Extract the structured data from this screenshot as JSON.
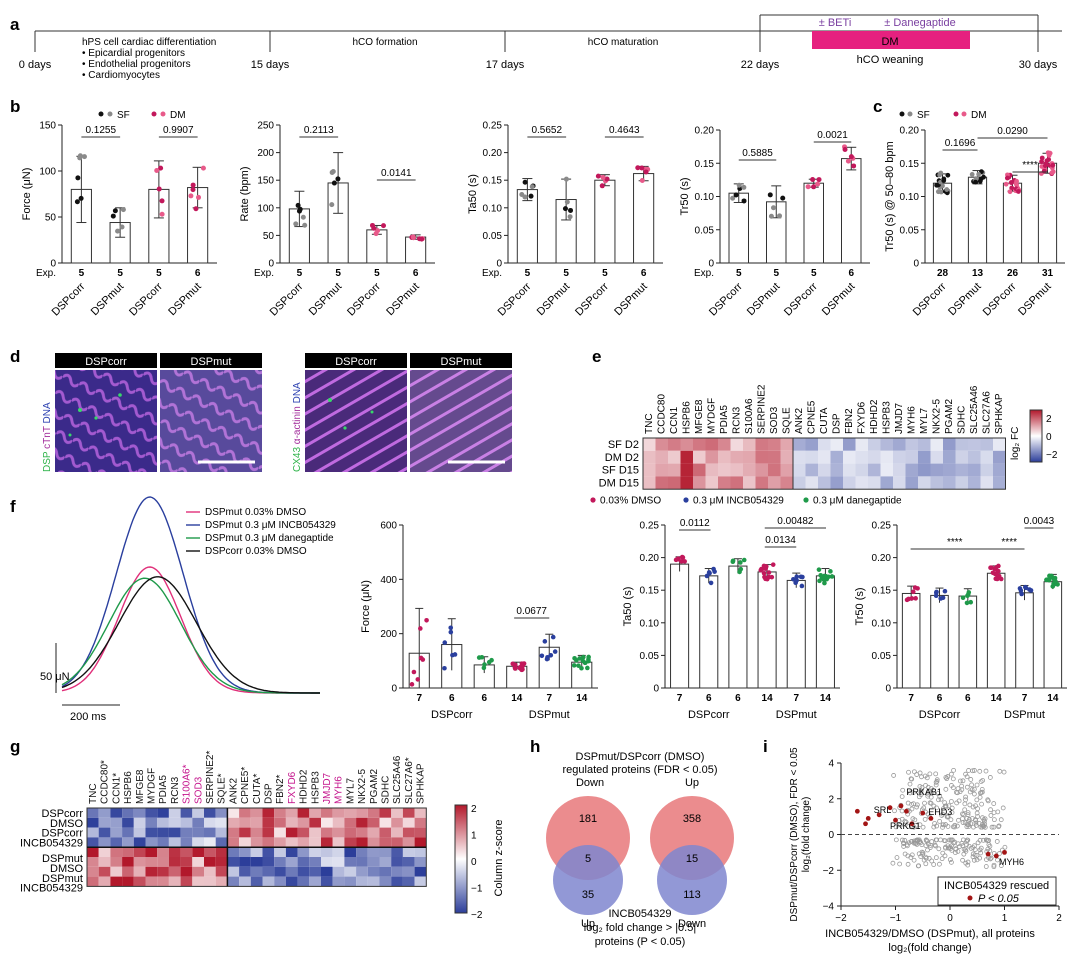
{
  "panel_labels": [
    "a",
    "b",
    "c",
    "d",
    "e",
    "f",
    "g",
    "h",
    "i"
  ],
  "a": {
    "timepoints": [
      "0 days",
      "15 days",
      "17 days",
      "22 days",
      "30 days"
    ],
    "phase_cardiac": "hPS cell cardiac differentiation",
    "bullets": [
      "• Epicardial progenitors",
      "• Endothelial progenitors",
      "• Cardiomyocytes"
    ],
    "phase_formation": "hCO formation",
    "phase_maturation": "hCO maturation",
    "beti": "± BETi",
    "danegaptide": "± Danegaptide",
    "dm": "DM",
    "weaning": "hCO weaning",
    "colors": {
      "dm_box": "#e6217f",
      "purple": "#7a3fa0"
    }
  },
  "b": {
    "legend": {
      "sf": "SF",
      "dm": "DM"
    },
    "exp_label": "Exp.",
    "groups": [
      "DSPcorr",
      "DSPmut",
      "DSPcorr",
      "DSPmut"
    ],
    "n": [
      "5",
      "5",
      "5",
      "6"
    ],
    "colors": {
      "sf1": "#111111",
      "sf2": "#8a8a8a",
      "dm1": "#c2185b",
      "dm2": "#e85a8a"
    }
  },
  "c": {
    "legend": {
      "sf": "SF",
      "dm": "DM"
    },
    "n": [
      "28",
      "13",
      "26",
      "31"
    ],
    "groups": [
      "DSPcorr",
      "DSPmut",
      "DSPcorr",
      "DSPmut"
    ]
  },
  "chart_data": [
    {
      "panel": "b",
      "type": "bar",
      "ylabel": "Force (μN)",
      "ylim": [
        0,
        150
      ],
      "yticks": [
        "0",
        "50",
        "100",
        "150"
      ],
      "categories": [
        "DSPcorr",
        "DSPmut",
        "DSPcorr",
        "DSPmut"
      ],
      "values": [
        80,
        44,
        80,
        82
      ],
      "errors": [
        36,
        16,
        31,
        22
      ],
      "pvalues": [
        {
          "text": "0.1255",
          "from": 0,
          "to": 1
        },
        {
          "text": "0.9907",
          "from": 2,
          "to": 3
        }
      ]
    },
    {
      "panel": "b",
      "type": "bar",
      "ylabel": "Rate (bpm)",
      "ylim": [
        0,
        250
      ],
      "yticks": [
        "0",
        "50",
        "100",
        "150",
        "200",
        "250"
      ],
      "categories": [
        "DSPcorr",
        "DSPmut",
        "DSPcorr",
        "DSPmut"
      ],
      "values": [
        98,
        145,
        60,
        47
      ],
      "errors": [
        32,
        55,
        8,
        4
      ],
      "pvalues": [
        {
          "text": "0.2113",
          "from": 0,
          "to": 1
        },
        {
          "text": "0.0141",
          "from": 2,
          "to": 3
        }
      ]
    },
    {
      "panel": "b",
      "type": "bar",
      "ylabel": "Ta50 (s)",
      "ylim": [
        0,
        0.25
      ],
      "yticks": [
        "0",
        "0.05",
        "0.10",
        "0.15",
        "0.20",
        "0.25"
      ],
      "categories": [
        "DSPcorr",
        "DSPmut",
        "DSPcorr",
        "DSPmut"
      ],
      "values": [
        0.133,
        0.115,
        0.15,
        0.162
      ],
      "errors": [
        0.02,
        0.037,
        0.01,
        0.013
      ],
      "pvalues": [
        {
          "text": "0.5652",
          "from": 0,
          "to": 1
        },
        {
          "text": "0.4643",
          "from": 2,
          "to": 3
        }
      ]
    },
    {
      "panel": "b",
      "type": "bar",
      "ylabel": "Tr50 (s)",
      "ylim": [
        0,
        0.2
      ],
      "yticks": [
        "0",
        "0.05",
        "0.10",
        "0.15",
        "0.20"
      ],
      "categories": [
        "DSPcorr",
        "DSPmut",
        "DSPcorr",
        "DSPmut"
      ],
      "values": [
        0.105,
        0.092,
        0.12,
        0.157
      ],
      "errors": [
        0.014,
        0.024,
        0.006,
        0.017
      ],
      "pvalues": [
        {
          "text": "0.5885",
          "from": 0,
          "to": 1
        },
        {
          "text": "0.0021",
          "from": 2,
          "to": 3
        }
      ]
    },
    {
      "panel": "c",
      "type": "bar",
      "ylabel": "Tr50 (s) @ 50–80 bpm",
      "ylim": [
        0,
        0.2
      ],
      "yticks": [
        "0",
        "0.05",
        "0.10",
        "0.15",
        "0.20"
      ],
      "categories": [
        "DSPcorr",
        "DSPmut",
        "DSPcorr",
        "DSPmut"
      ],
      "values": [
        0.12,
        0.129,
        0.12,
        0.15
      ],
      "errors": [
        0.014,
        0.01,
        0.012,
        0.015
      ],
      "pvalues": [
        {
          "text": "0.1696",
          "from": 0,
          "to": 1
        },
        {
          "text": "****",
          "from": 2,
          "to": 3
        },
        {
          "text": "0.0290",
          "from": 1,
          "to": 3
        }
      ]
    },
    {
      "panel": "f",
      "type": "line",
      "series": [
        {
          "name": "DSPmut 0.03% DMSO",
          "peak": 0.9
        },
        {
          "name": "DSPmut  0.3 μM INCB054329",
          "peak": 1.4
        },
        {
          "name": "DSPmut  0.3 μM danegaptide",
          "peak": 0.82
        },
        {
          "name": "DSPcorr 0.03% DMSO",
          "peak": 0.83
        }
      ],
      "colors": [
        "#e0307a",
        "#2a3f9e",
        "#1f9a4a",
        "#111111"
      ],
      "scalebars": [
        "50 μN",
        "200 ms"
      ]
    },
    {
      "panel": "f",
      "type": "bar",
      "ylabel": "Force (μN)",
      "ylim": [
        0,
        600
      ],
      "yticks": [
        "0",
        "200",
        "400",
        "600"
      ],
      "categories": [
        "DSPcorr",
        "DSPmut"
      ],
      "series": [
        {
          "name": "0.03% DMSO",
          "values": [
            128,
            80
          ],
          "errors": [
            165,
            15
          ]
        },
        {
          "name": "0.3 μM INCB054329",
          "values": [
            160,
            150
          ],
          "errors": [
            95,
            48
          ]
        },
        {
          "name": "0.3 μM danegaptide",
          "values": [
            85,
            95
          ],
          "errors": [
            30,
            25
          ]
        }
      ],
      "n": [
        "7",
        "6",
        "6",
        "14",
        "7",
        "14"
      ],
      "pvalues": [
        {
          "text": "0.0677"
        }
      ]
    },
    {
      "panel": "f",
      "type": "bar",
      "ylabel": "Ta50 (s)",
      "ylim": [
        0,
        0.25
      ],
      "yticks": [
        "0",
        "0.05",
        "0.10",
        "0.15",
        "0.20",
        "0.25"
      ],
      "categories": [
        "DSPcorr",
        "DSPmut"
      ],
      "series": [
        {
          "name": "0.03% DMSO",
          "values": [
            0.19,
            0.178
          ]
        },
        {
          "name": "0.3 μM INCB054329",
          "values": [
            0.172,
            0.165
          ]
        },
        {
          "name": "0.3 μM danegaptide",
          "values": [
            0.187,
            0.172
          ]
        }
      ],
      "n": [
        "7",
        "6",
        "6",
        "14",
        "7",
        "14"
      ],
      "pvalues": [
        {
          "text": "0.0112"
        },
        {
          "text": "0.0134"
        },
        {
          "text": "0.00482"
        }
      ]
    },
    {
      "panel": "f",
      "type": "bar",
      "ylabel": "Tr50 (s)",
      "ylim": [
        0,
        0.25
      ],
      "yticks": [
        "0",
        "0.05",
        "0.10",
        "0.15",
        "0.20",
        "0.25"
      ],
      "categories": [
        "DSPcorr",
        "DSPmut"
      ],
      "series": [
        {
          "name": "0.03% DMSO",
          "values": [
            0.145,
            0.176
          ]
        },
        {
          "name": "0.3 μM INCB054329",
          "values": [
            0.142,
            0.146
          ]
        },
        {
          "name": "0.3 μM danegaptide",
          "values": [
            0.141,
            0.163
          ]
        }
      ],
      "n": [
        "7",
        "6",
        "6",
        "14",
        "7",
        "14"
      ],
      "pvalues": [
        {
          "text": "****"
        },
        {
          "text": "****"
        },
        {
          "text": "0.0043"
        }
      ]
    },
    {
      "panel": "h",
      "type": "table",
      "title_lines": [
        "DSPmut/DSPcorr (DMSO)",
        "regulated proteins (FDR < 0.05)"
      ],
      "left": {
        "top": "Down",
        "bottom": "Up",
        "top_only": 181,
        "overlap": 5,
        "bottom_only": 35
      },
      "right": {
        "top": "Up",
        "bottom": "Down",
        "top_only": 358,
        "overlap": 15,
        "bottom_only": 113
      }
    },
    {
      "panel": "i",
      "type": "scatter",
      "xlim": [
        -2,
        2
      ],
      "ylim": [
        -4,
        4
      ],
      "xticks": [
        "−2",
        "−1",
        "0",
        "1",
        "2"
      ],
      "yticks": [
        "−4",
        "−2",
        "0",
        "2",
        "4"
      ],
      "labels": [
        "PRKAB1",
        "SRL",
        "EHD3",
        "PRKG1",
        "MYH6"
      ]
    }
  ],
  "d": {
    "left_headers": [
      "DSPcorr",
      "DSPmut"
    ],
    "right_headers": [
      "DSPcorr",
      "DSPmut"
    ],
    "left_stain": {
      "dsp": "DSP",
      "ctnt": "cTnT",
      "dna": "DNA"
    },
    "right_stain": {
      "cx43": "CX43",
      "actinin": "α-actinin",
      "dna": "DNA"
    }
  },
  "e": {
    "genes": [
      "TNC",
      "CCDC80",
      "CCN1",
      "HSPB6",
      "MFGE8",
      "MYDGF",
      "PDIA5",
      "RCN3",
      "S100A6",
      "SERPINE2",
      "SOD3",
      "SQLE",
      "ANK2",
      "CPNE5",
      "CUTA",
      "DSP",
      "FBN2",
      "FXYD6",
      "HDHD2",
      "HSPB3",
      "JMJD7",
      "MYH6",
      "MYL7",
      "NKX2-5",
      "PGAM2",
      "SDHC",
      "SLC25A46",
      "SLC27A6",
      "SPHKAP"
    ],
    "rows": [
      "SF D2",
      "DM D2",
      "SF D15",
      "DM D15"
    ],
    "colorbar_ticks": [
      "2",
      "0",
      "−2"
    ],
    "colorbar_label": "log₂ FC"
  },
  "f": {
    "legend": [
      "0.03% DMSO",
      "0.3 μM INCB054329",
      "0.3 μM danegaptide"
    ],
    "groups": [
      "DSPcorr",
      "DSPmut"
    ]
  },
  "g": {
    "genes": [
      "TNC",
      "CCDC80*",
      "CCN1*",
      "HSPB6",
      "MFGE8",
      "MYDGF",
      "PDIA5",
      "RCN3",
      "S100A6*",
      "SOD3",
      "SERPINE2*",
      "SQLE*",
      "ANK2",
      "CPNE5*",
      "CUTA*",
      "DSP",
      "FBN2*",
      "FXYD6",
      "HDHD2",
      "HSPB3",
      "JMJD7",
      "MYH6",
      "MYL7",
      "NKX2-5",
      "PGAM2",
      "SDHC",
      "SLC25A46",
      "SLC27A6*",
      "SPHKAP"
    ],
    "magenta_genes": [
      "S100A6*",
      "SOD3",
      "FXYD6",
      "JMJD7",
      "MYH6"
    ],
    "rows": [
      "DSPcorr",
      "DMSO",
      "DSPcorr",
      "INCB054329",
      "DSPmut",
      "DMSO",
      "DSPmut",
      "INCB054329"
    ],
    "colorbar_ticks": [
      "2",
      "1",
      "0",
      "−1",
      "−2"
    ],
    "colorbar_label": "Column z-score"
  },
  "h": {
    "footer": [
      "INCB054329",
      "log₂ fold change > |0.5|",
      "proteins (P < 0.05)"
    ]
  },
  "i": {
    "ylabel1": "DSPmut/DSPcorr (DMSO), FDR < 0.05",
    "ylabel2": "log₂(fold change)",
    "xlabel1": "INCB054329/DMSO (DSPmut), all proteins",
    "xlabel2": "log₂(fold change)",
    "legend_title": "INCB054329 rescued",
    "legend_item": "P < 0.05"
  }
}
